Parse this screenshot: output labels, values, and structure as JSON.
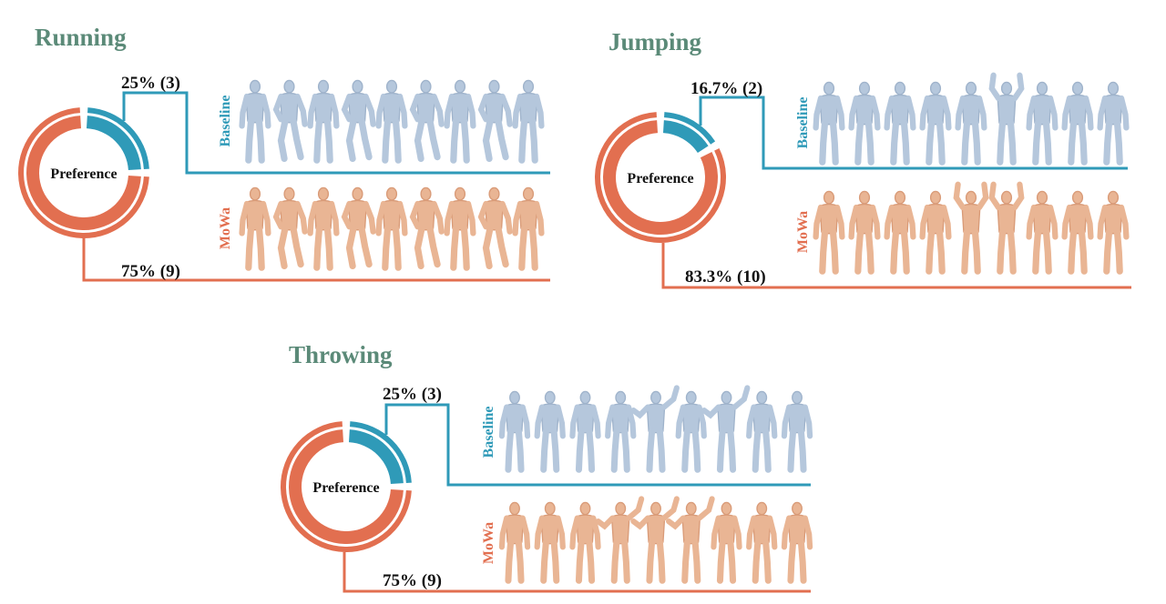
{
  "chart_data": [
    {
      "type": "pie",
      "title": "Running",
      "center_label": "Preference",
      "categories": [
        "Baseline",
        "MoWa"
      ],
      "values": [
        25,
        75
      ],
      "counts": [
        3,
        9
      ],
      "data_labels": [
        "25% (3)",
        "75% (9)"
      ],
      "frames": 9
    },
    {
      "type": "pie",
      "title": "Jumping",
      "center_label": "Preference",
      "categories": [
        "Baseline",
        "MoWa"
      ],
      "values": [
        16.7,
        83.3
      ],
      "counts": [
        2,
        10
      ],
      "data_labels": [
        "16.7% (2)",
        "83.3% (10)"
      ],
      "frames": 9
    },
    {
      "type": "pie",
      "title": "Throwing",
      "center_label": "Preference",
      "categories": [
        "Baseline",
        "MoWa"
      ],
      "values": [
        25,
        75
      ],
      "counts": [
        3,
        9
      ],
      "data_labels": [
        "25% (3)",
        "75% (9)"
      ],
      "frames": 9
    }
  ],
  "colors": {
    "baseline": "#2f9ab8",
    "mowa": "#e26f50",
    "baseline_figure": "#b5c7dc",
    "mowa_figure": "#e9b594",
    "title": "#5b8a78"
  }
}
